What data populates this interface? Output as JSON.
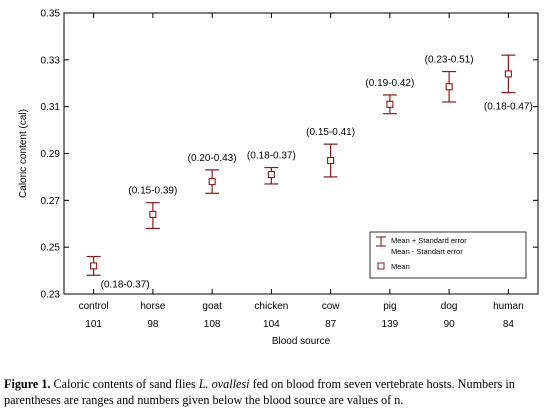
{
  "chart_data": {
    "type": "scatter",
    "xlabel": "Blood source",
    "ylabel": "Caloric content (cal)",
    "ylim": [
      0.23,
      0.35
    ],
    "yticks": [
      "0.23",
      "0.25",
      "0.27",
      "0.29",
      "0.31",
      "0.33",
      "0.35"
    ],
    "grid": false,
    "categories": [
      "control",
      "horse",
      "goat",
      "chicken",
      "cow",
      "pig",
      "dog",
      "human"
    ],
    "n_values": [
      "101",
      "98",
      "108",
      "104",
      "87",
      "139",
      "90",
      "84"
    ],
    "series": [
      {
        "name": "Mean",
        "values": [
          0.242,
          0.264,
          0.278,
          0.281,
          0.287,
          0.311,
          0.3185,
          0.324
        ],
        "se_upper": [
          0.246,
          0.269,
          0.283,
          0.284,
          0.294,
          0.315,
          0.325,
          0.332
        ],
        "se_lower": [
          0.238,
          0.258,
          0.273,
          0.277,
          0.28,
          0.307,
          0.312,
          0.316
        ]
      }
    ],
    "ranges": [
      "(0.18-0.37)",
      "(0.15-0.39)",
      "(0.20-0.43)",
      "(0.18-0.37)",
      "(0.15-0.41)",
      "(0.19-0.42)",
      "(0.23-0.51)",
      "(0.18-0.47)"
    ],
    "range_placement": [
      "below-right",
      "above",
      "above",
      "above",
      "above",
      "above",
      "above",
      "below"
    ],
    "legend": {
      "placement": "bottom-right",
      "error_label_1": "Mean + Standard error",
      "error_label_2": "Mean - Standart error",
      "mean_label": "Mean"
    },
    "colors": {
      "error_bar": "#8b1a1a",
      "marker": "#8b1a1a",
      "axis": "#000000"
    }
  },
  "caption": {
    "label": "Figure 1.",
    "text_before": " Caloric contents of sand flies ",
    "species": "L. ovallesi",
    "text_after": " fed on blood from seven vertebrate hosts. Numbers in parentheses are ranges and numbers given below the blood source are values of n."
  }
}
